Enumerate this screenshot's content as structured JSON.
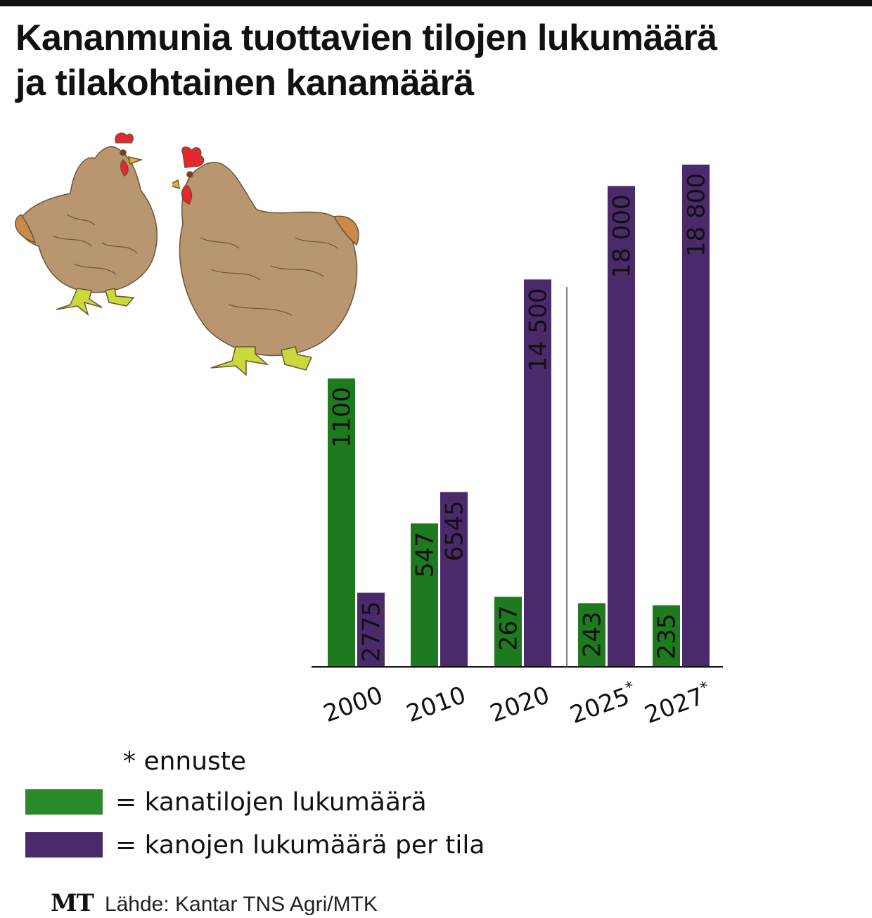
{
  "title": {
    "line1": "Kananmunia tuottavien tilojen lukumäärä",
    "line2": "ja tilakohtainen kanamäärä"
  },
  "colors": {
    "farms": "#1e7a1e",
    "hens": "#4b2a6b",
    "chicken_body": "#b89670",
    "chicken_comb": "#e8262d",
    "chicken_feet": "#c9d83a"
  },
  "chart_data": {
    "type": "bar",
    "categories": [
      "2000",
      "2010",
      "2020",
      "2025*",
      "2027*"
    ],
    "series": [
      {
        "name": "kanatilojen lukumäärä",
        "values": [
          1100,
          547,
          267,
          243,
          235
        ],
        "labels": [
          "1100",
          "547",
          "267",
          "243",
          "235"
        ]
      },
      {
        "name": "kanojen lukumäärä per tila",
        "values": [
          2775,
          6545,
          14500,
          18000,
          18800
        ],
        "labels": [
          "2775",
          "6545",
          "14 500",
          "18 000",
          "18 800"
        ]
      }
    ],
    "forecast_marker": "*",
    "forecast_from_category": "2025*"
  },
  "legend": {
    "note": "* ennuste",
    "farms_label": "= kanatilojen lukumäärä",
    "hens_label": "= kanojen lukumäärä per tila"
  },
  "source": {
    "logo": "MT",
    "text": "Lähde: Kantar TNS Agri/MTK"
  },
  "illustration": {
    "icon": "chicken-icon"
  }
}
